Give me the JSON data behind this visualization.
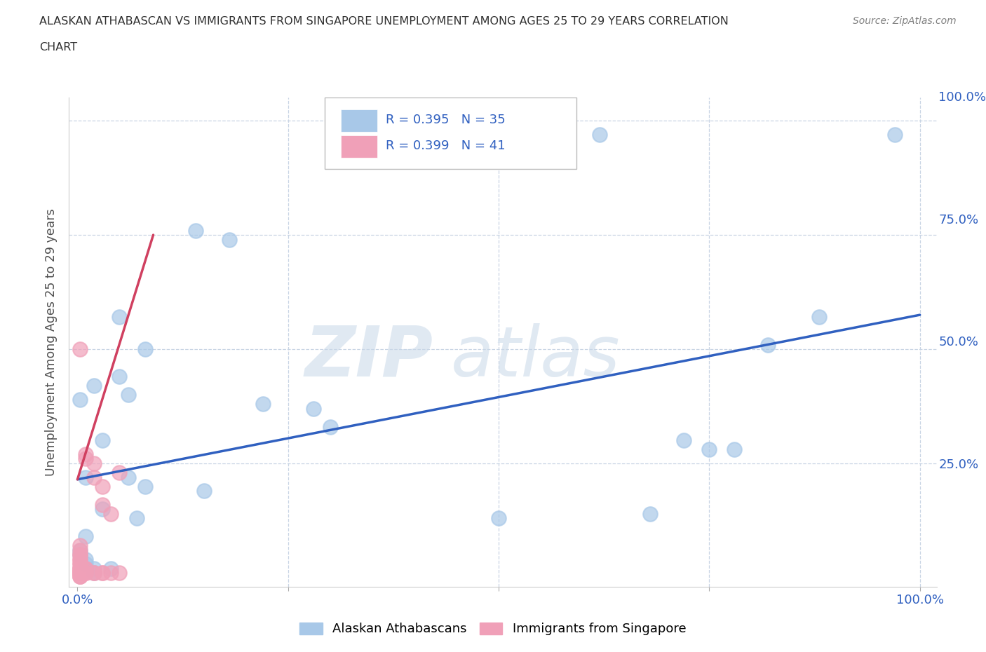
{
  "title_line1": "ALASKAN ATHABASCAN VS IMMIGRANTS FROM SINGAPORE UNEMPLOYMENT AMONG AGES 25 TO 29 YEARS CORRELATION",
  "title_line2": "CHART",
  "source": "Source: ZipAtlas.com",
  "ylabel": "Unemployment Among Ages 25 to 29 years",
  "xlim": [
    -0.01,
    1.02
  ],
  "ylim": [
    -0.02,
    1.05
  ],
  "blue_R": 0.395,
  "blue_N": 35,
  "pink_R": 0.399,
  "pink_N": 41,
  "blue_color": "#a8c8e8",
  "pink_color": "#f0a0b8",
  "blue_line_color": "#3060c0",
  "pink_line_color": "#d04060",
  "blue_scatter_x": [
    0.62,
    0.97,
    0.05,
    0.08,
    0.02,
    0.003,
    0.03,
    0.01,
    0.06,
    0.22,
    0.28,
    0.18,
    0.14,
    0.5,
    0.68,
    0.72,
    0.82,
    0.88,
    0.75,
    0.78,
    0.15,
    0.3,
    0.05,
    0.07,
    0.01,
    0.003,
    0.003,
    0.01,
    0.01,
    0.02,
    0.02,
    0.04,
    0.03,
    0.06,
    0.08
  ],
  "blue_scatter_y": [
    0.97,
    0.97,
    0.57,
    0.5,
    0.42,
    0.39,
    0.3,
    0.22,
    0.4,
    0.38,
    0.37,
    0.74,
    0.76,
    0.13,
    0.14,
    0.3,
    0.51,
    0.57,
    0.28,
    0.28,
    0.19,
    0.33,
    0.44,
    0.13,
    0.09,
    0.06,
    0.05,
    0.04,
    0.03,
    0.02,
    0.01,
    0.02,
    0.15,
    0.22,
    0.2
  ],
  "pink_scatter_x": [
    0.003,
    0.01,
    0.01,
    0.02,
    0.02,
    0.03,
    0.03,
    0.04,
    0.05,
    0.003,
    0.003,
    0.003,
    0.01,
    0.01,
    0.01,
    0.01,
    0.02,
    0.02,
    0.03,
    0.03,
    0.04,
    0.05,
    0.003,
    0.003,
    0.003,
    0.003,
    0.003,
    0.003,
    0.003,
    0.003,
    0.003,
    0.003,
    0.003,
    0.003,
    0.003,
    0.003,
    0.003,
    0.003,
    0.003,
    0.003,
    0.003
  ],
  "pink_scatter_y": [
    0.5,
    0.27,
    0.26,
    0.25,
    0.22,
    0.2,
    0.16,
    0.14,
    0.23,
    0.05,
    0.04,
    0.03,
    0.02,
    0.02,
    0.01,
    0.01,
    0.01,
    0.01,
    0.01,
    0.01,
    0.01,
    0.01,
    0.07,
    0.06,
    0.05,
    0.04,
    0.03,
    0.02,
    0.02,
    0.02,
    0.02,
    0.01,
    0.01,
    0.01,
    0.01,
    0.01,
    0.01,
    0.01,
    0.003,
    0.003,
    0.003
  ],
  "blue_trend_x": [
    0.0,
    1.0
  ],
  "blue_trend_y": [
    0.215,
    0.575
  ],
  "pink_trend_x": [
    0.0,
    0.09
  ],
  "pink_trend_y": [
    0.215,
    0.75
  ],
  "background_color": "#ffffff",
  "grid_color": "#c8d4e4",
  "title_color": "#303030",
  "label_color": "#505050",
  "tick_label_color": "#3060c0",
  "source_color": "#808080",
  "scatter_size": 220,
  "scatter_alpha": 0.7
}
